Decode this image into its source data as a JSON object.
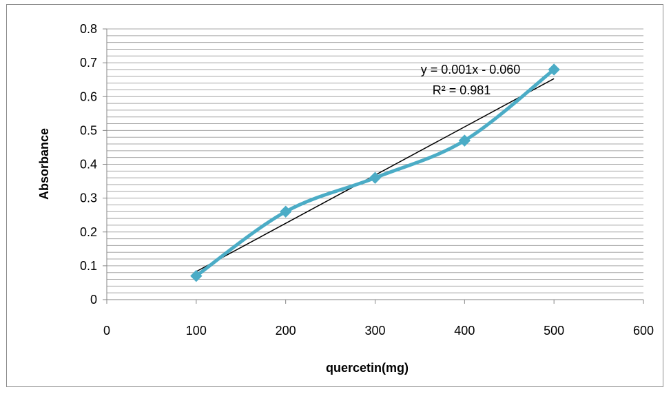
{
  "chart_data": {
    "type": "scatter",
    "title": "",
    "xlabel": "quercetin(mg)",
    "ylabel": "Absorbance",
    "xlim": [
      0,
      600
    ],
    "ylim": [
      0,
      0.8
    ],
    "x_ticks": [
      "0",
      "100",
      "200",
      "300",
      "400",
      "500",
      "600"
    ],
    "y_ticks": [
      "0",
      "0.1",
      "0.2",
      "0.3",
      "0.4",
      "0.5",
      "0.6",
      "0.7",
      "0.8"
    ],
    "grid": "horizontal minor",
    "series": [
      {
        "x": [
          100,
          200,
          300,
          400,
          500
        ],
        "y": [
          0.07,
          0.26,
          0.36,
          0.47,
          0.68
        ],
        "color": "#4bacc6",
        "marker": "diamond",
        "line": "smoothed"
      }
    ],
    "trendline": {
      "type": "linear",
      "slope": 0.001425,
      "intercept": -0.0595,
      "x_range": [
        100,
        500
      ],
      "color": "#000000",
      "equation": "y = 0.001x - 0.060",
      "r_squared": "R² = 0.981"
    },
    "legend": "none"
  }
}
